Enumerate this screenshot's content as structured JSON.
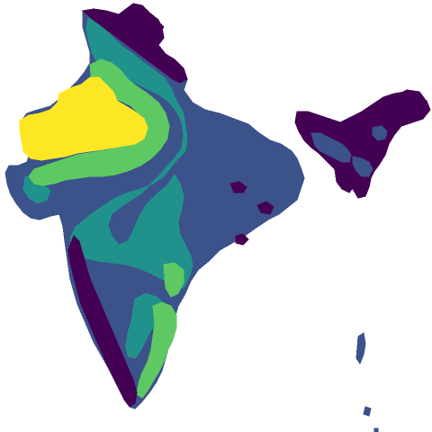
{
  "map": {
    "region": "India",
    "colors": {
      "background": "#ffffff",
      "class_1": "#440154",
      "class_2": "#3b528b",
      "class_3": "#21918c",
      "class_4": "#5ec962",
      "class_5": "#fde725"
    },
    "classes": [
      {
        "id": "class_1",
        "color": "#440154"
      },
      {
        "id": "class_2",
        "color": "#3b528b"
      },
      {
        "id": "class_3",
        "color": "#21918c"
      },
      {
        "id": "class_4",
        "color": "#5ec962"
      },
      {
        "id": "class_5",
        "color": "#fde725"
      }
    ]
  }
}
